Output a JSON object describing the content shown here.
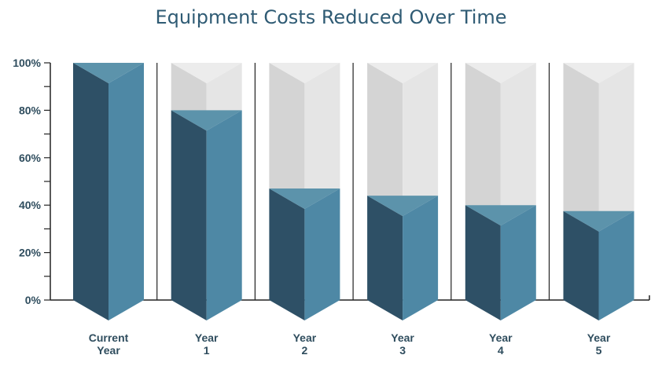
{
  "chart_data": {
    "type": "bar",
    "title": "Equipment Costs Reduced Over Time",
    "categories": [
      [
        "Current",
        "Year"
      ],
      [
        "Year",
        "1"
      ],
      [
        "Year",
        "2"
      ],
      [
        "Year",
        "3"
      ],
      [
        "Year",
        "4"
      ],
      [
        "Year",
        "5"
      ]
    ],
    "values": [
      100,
      80,
      47,
      44,
      40,
      37.5
    ],
    "ylim": [
      0,
      100
    ],
    "yticks": [
      "0%",
      "20%",
      "40%",
      "60%",
      "80%",
      "100%"
    ],
    "grid": false,
    "legend": "none",
    "colors": {
      "bar_left": "#2e5066",
      "bar_right": "#4e88a5",
      "bar_cap": "#5c93ab",
      "empty_left": "#d4d4d4",
      "empty_right": "#e5e5e5",
      "axis": "#222222"
    }
  }
}
